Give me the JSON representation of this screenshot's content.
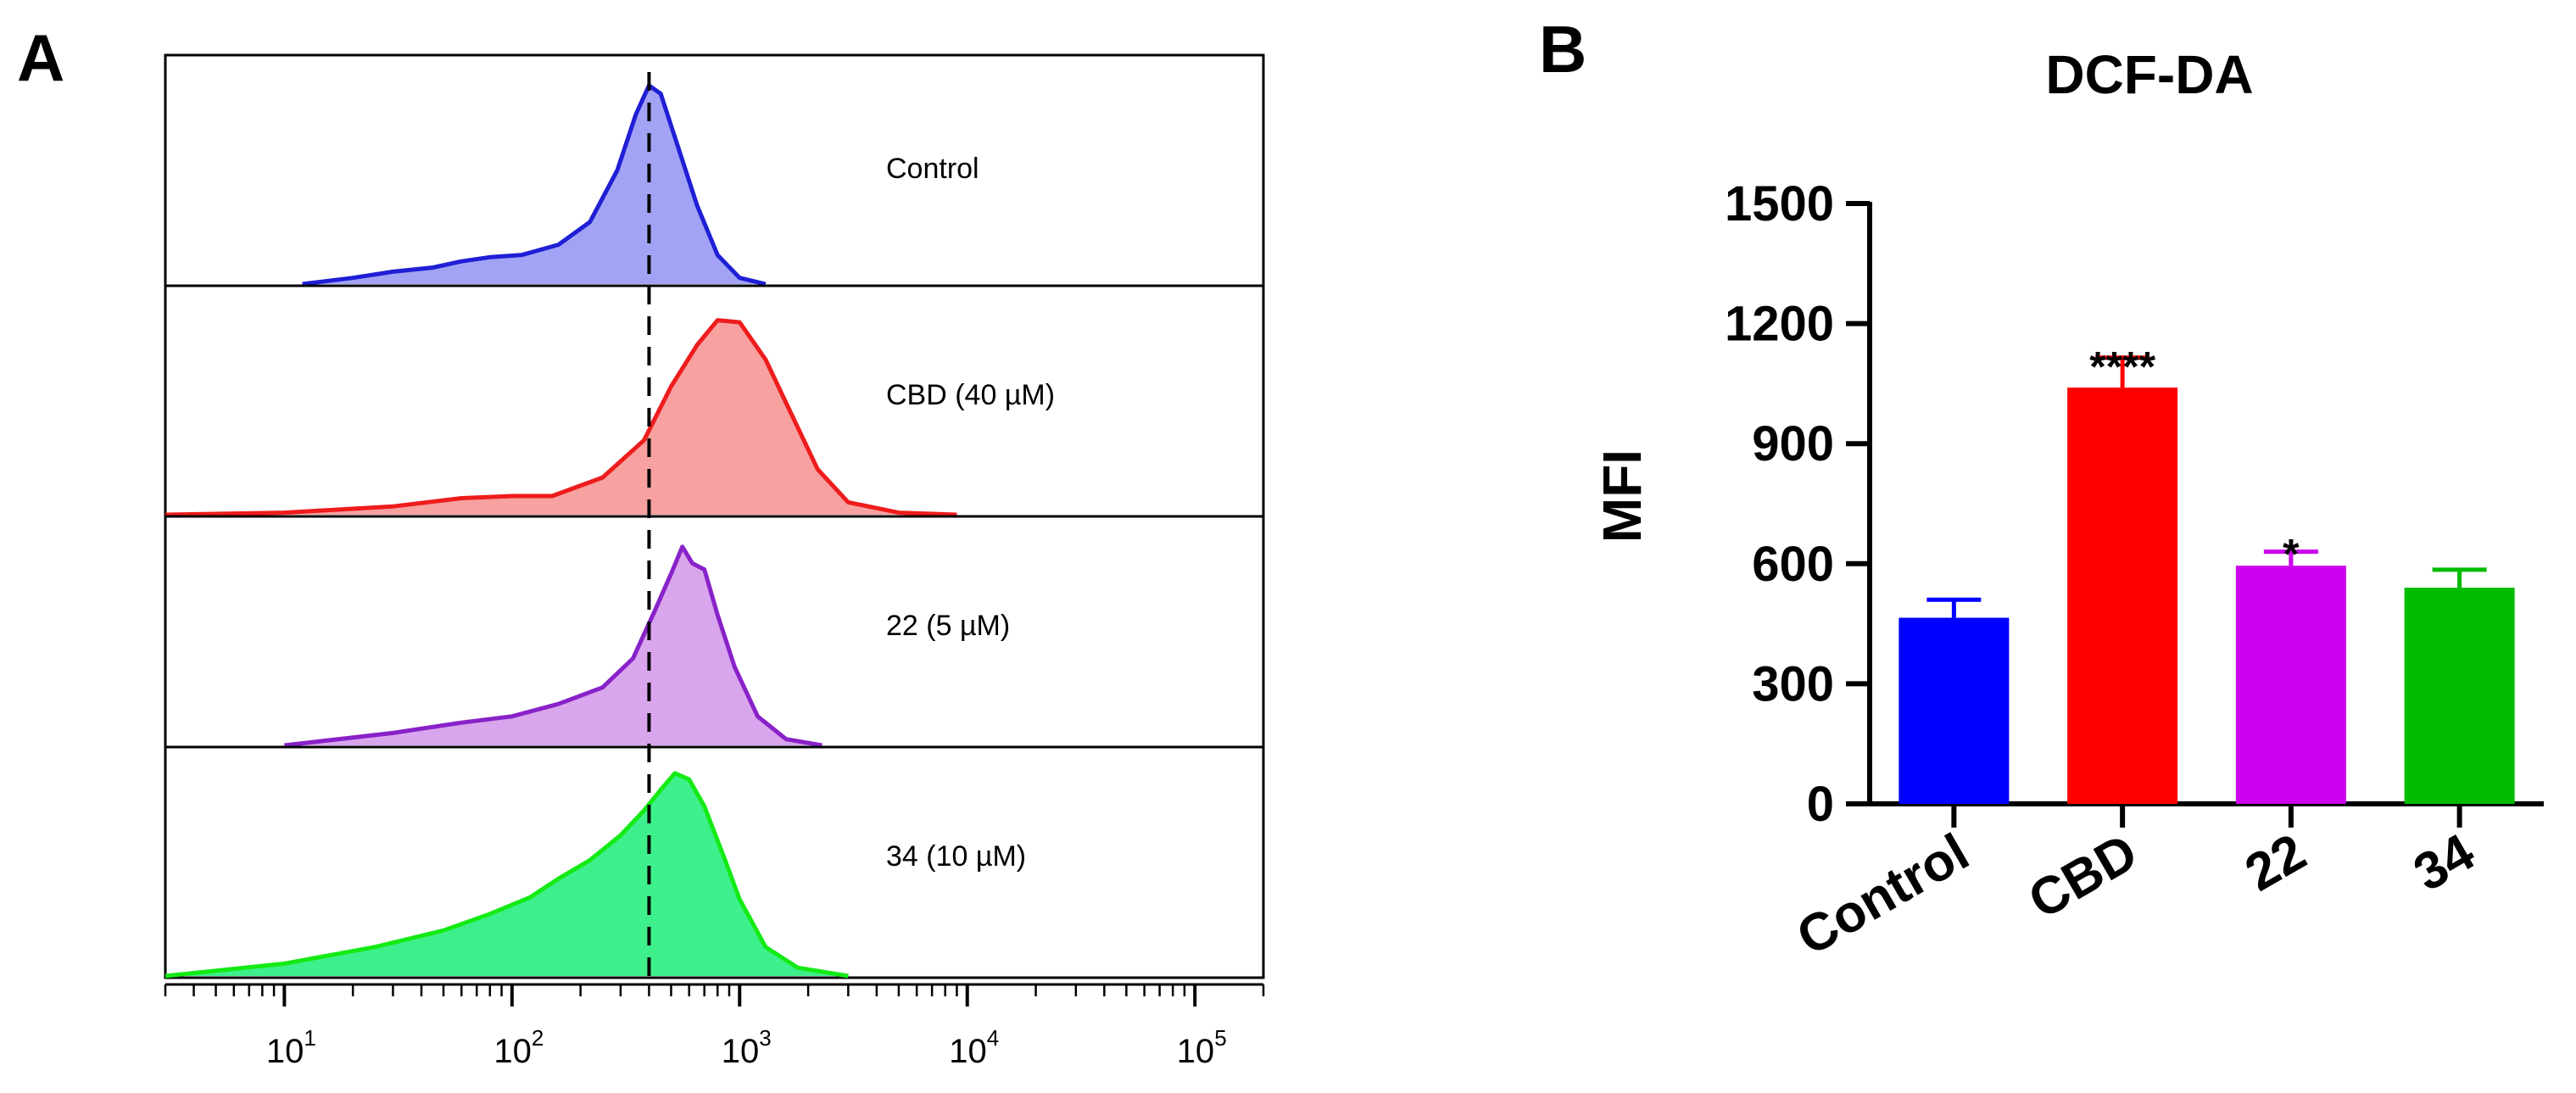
{
  "panel_a": {
    "letter": "A",
    "chart_data": {
      "type": "area",
      "title": "",
      "xlabel": "",
      "x_scale": "log",
      "xlim": [
        3,
        200000
      ],
      "ticks": [
        {
          "base": "10",
          "exp": "1",
          "value": 10
        },
        {
          "base": "10",
          "exp": "2",
          "value": 100
        },
        {
          "base": "10",
          "exp": "3",
          "value": 1000
        },
        {
          "base": "10",
          "exp": "4",
          "value": 10000
        },
        {
          "base": "10",
          "exp": "5",
          "value": 100000
        }
      ],
      "reference_line": 400,
      "series": [
        {
          "label": "Control",
          "fill": "#a3a3f5",
          "stroke": "#1f1fd6",
          "points": [
            [
              12,
              0.0
            ],
            [
              20,
              0.03
            ],
            [
              30,
              0.06
            ],
            [
              45,
              0.08
            ],
            [
              60,
              0.11
            ],
            [
              80,
              0.13
            ],
            [
              110,
              0.14
            ],
            [
              160,
              0.19
            ],
            [
              220,
              0.3
            ],
            [
              290,
              0.55
            ],
            [
              350,
              0.82
            ],
            [
              400,
              0.96
            ],
            [
              450,
              0.92
            ],
            [
              530,
              0.68
            ],
            [
              650,
              0.38
            ],
            [
              800,
              0.14
            ],
            [
              1000,
              0.03
            ],
            [
              1300,
              0.0
            ]
          ]
        },
        {
          "label": "CBD (40 µM)",
          "fill": "#f7a1a1",
          "stroke": "#ee1c1c",
          "points": [
            [
              3,
              0.0
            ],
            [
              10,
              0.01
            ],
            [
              30,
              0.04
            ],
            [
              60,
              0.08
            ],
            [
              100,
              0.09
            ],
            [
              150,
              0.09
            ],
            [
              250,
              0.18
            ],
            [
              380,
              0.36
            ],
            [
              500,
              0.62
            ],
            [
              650,
              0.82
            ],
            [
              800,
              0.94
            ],
            [
              1000,
              0.93
            ],
            [
              1300,
              0.75
            ],
            [
              1700,
              0.48
            ],
            [
              2200,
              0.22
            ],
            [
              3000,
              0.06
            ],
            [
              5000,
              0.01
            ],
            [
              9000,
              0.0
            ]
          ]
        },
        {
          "label": "22 (5 µM)",
          "fill": "#d9a5ec",
          "stroke": "#8822c8",
          "points": [
            [
              10,
              0.0
            ],
            [
              30,
              0.06
            ],
            [
              60,
              0.11
            ],
            [
              100,
              0.14
            ],
            [
              160,
              0.2
            ],
            [
              250,
              0.28
            ],
            [
              340,
              0.42
            ],
            [
              420,
              0.64
            ],
            [
              500,
              0.83
            ],
            [
              560,
              0.96
            ],
            [
              620,
              0.88
            ],
            [
              700,
              0.85
            ],
            [
              800,
              0.63
            ],
            [
              950,
              0.38
            ],
            [
              1200,
              0.14
            ],
            [
              1600,
              0.03
            ],
            [
              2300,
              0.0
            ]
          ]
        },
        {
          "label": "34 (10 µM)",
          "fill": "#3ef08b",
          "stroke": "#14ea14",
          "points": [
            [
              3,
              0.0
            ],
            [
              10,
              0.06
            ],
            [
              25,
              0.14
            ],
            [
              50,
              0.22
            ],
            [
              80,
              0.3
            ],
            [
              120,
              0.38
            ],
            [
              160,
              0.47
            ],
            [
              220,
              0.56
            ],
            [
              300,
              0.68
            ],
            [
              380,
              0.8
            ],
            [
              450,
              0.9
            ],
            [
              520,
              0.98
            ],
            [
              600,
              0.95
            ],
            [
              700,
              0.82
            ],
            [
              850,
              0.58
            ],
            [
              1000,
              0.37
            ],
            [
              1300,
              0.14
            ],
            [
              1800,
              0.04
            ],
            [
              3000,
              0.0
            ]
          ]
        }
      ]
    }
  },
  "panel_b": {
    "letter": "B",
    "chart_data": {
      "type": "bar",
      "title": "DCF-DA",
      "xlabel": "",
      "ylabel": "MFI",
      "ylim": [
        0,
        1500
      ],
      "yticks": [
        0,
        300,
        600,
        900,
        1200,
        1500
      ],
      "categories": [
        "Control",
        "CBD",
        "22",
        "34"
      ],
      "values": [
        465,
        1040,
        595,
        540
      ],
      "errors": [
        45,
        75,
        35,
        45
      ],
      "significance": [
        "",
        "****",
        "*",
        ""
      ],
      "colors": [
        "#0000ff",
        "#ff0000",
        "#cc00ee",
        "#00bb00"
      ]
    }
  }
}
